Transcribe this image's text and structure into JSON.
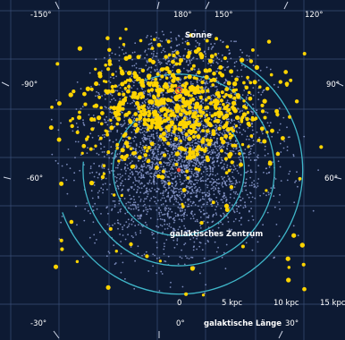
{
  "colors": {
    "background": "#0d1a33",
    "grid": "#3a4f78",
    "rings": "#3fb6c9",
    "pulsars": "#8d9cd0",
    "stars": "#ffd400",
    "sun_marker": "#ff4d2e"
  },
  "chart_data": {
    "type": "scatter",
    "title": "",
    "xlabel": "",
    "ylabel": "",
    "grid": true,
    "longitude_labels": [
      "-150°",
      "180°",
      "150°",
      "120°",
      "-90°",
      "90°",
      "-60°",
      "60°",
      "-30°",
      "0°",
      "30°"
    ],
    "longitude_axis_label": "galaktische Länge",
    "distance_labels": [
      "0",
      "5 kpc",
      "10 kpc",
      "15 kpc"
    ],
    "annotations": {
      "sun": "Sonne",
      "galactic_center": "galaktisches Zentrum"
    },
    "center_kpc": [
      0,
      0
    ],
    "sun_position_kpc": [
      0,
      8.5
    ],
    "series": [
      {
        "kind": "pulsar-cloud",
        "count": 3600,
        "centers_kpc": [
          [
            0,
            6.0
          ],
          [
            0,
            0
          ]
        ],
        "spread_kpc": [
          4.5,
          6.0
        ],
        "extent_kpc": 15
      },
      {
        "kind": "yellow-stars",
        "count": 700,
        "centers_kpc": [
          [
            0,
            6.5
          ]
        ],
        "spread_kpc": [
          5.0,
          3.0
        ],
        "extent_kpc": 15
      }
    ]
  }
}
